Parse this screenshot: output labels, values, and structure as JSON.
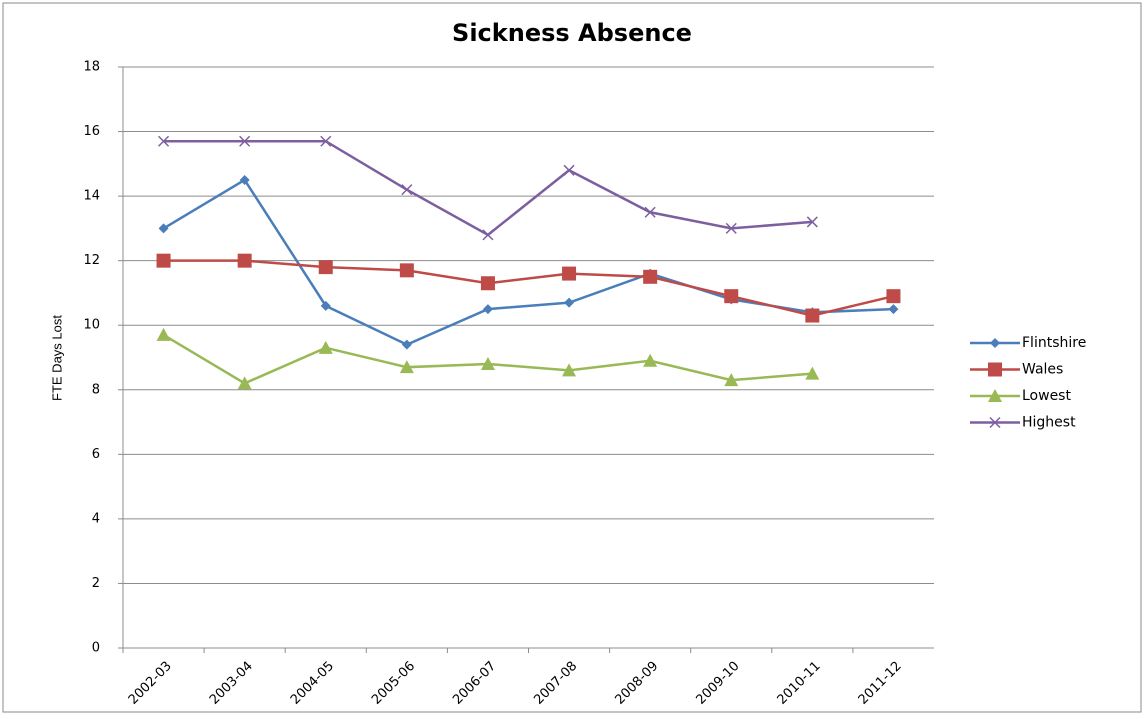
{
  "chart_data": {
    "type": "line",
    "title": "Sickness Absence",
    "y_label": "FTE Days Lost",
    "categories": [
      "2002-03",
      "2003-04",
      "2004-05",
      "2005-06",
      "2006-07",
      "2007-08",
      "2008-09",
      "2009-10",
      "2010-11",
      "2011-12"
    ],
    "series": [
      {
        "name": "Flintshire",
        "color": "#4a7ebb",
        "marker": "diamond",
        "values": [
          13.0,
          14.5,
          10.6,
          9.4,
          10.5,
          10.7,
          11.6,
          10.8,
          10.4,
          10.5
        ]
      },
      {
        "name": "Wales",
        "color": "#be4b48",
        "marker": "square",
        "values": [
          12.0,
          12.0,
          11.8,
          11.7,
          11.3,
          11.6,
          11.5,
          10.9,
          10.3,
          10.9
        ]
      },
      {
        "name": "Lowest",
        "color": "#98b954",
        "marker": "triangle",
        "values": [
          9.7,
          8.2,
          9.3,
          8.7,
          8.8,
          8.6,
          8.9,
          8.3,
          8.5,
          null
        ]
      },
      {
        "name": "Highest",
        "color": "#7d5fa0",
        "marker": "x",
        "values": [
          15.7,
          15.7,
          15.7,
          14.2,
          12.8,
          14.8,
          13.5,
          13.0,
          13.2,
          null
        ]
      }
    ],
    "ylim": [
      0,
      18
    ],
    "yticks": [
      0,
      2,
      4,
      6,
      8,
      10,
      12,
      14,
      16,
      18
    ],
    "grid": true,
    "legend": "right"
  }
}
